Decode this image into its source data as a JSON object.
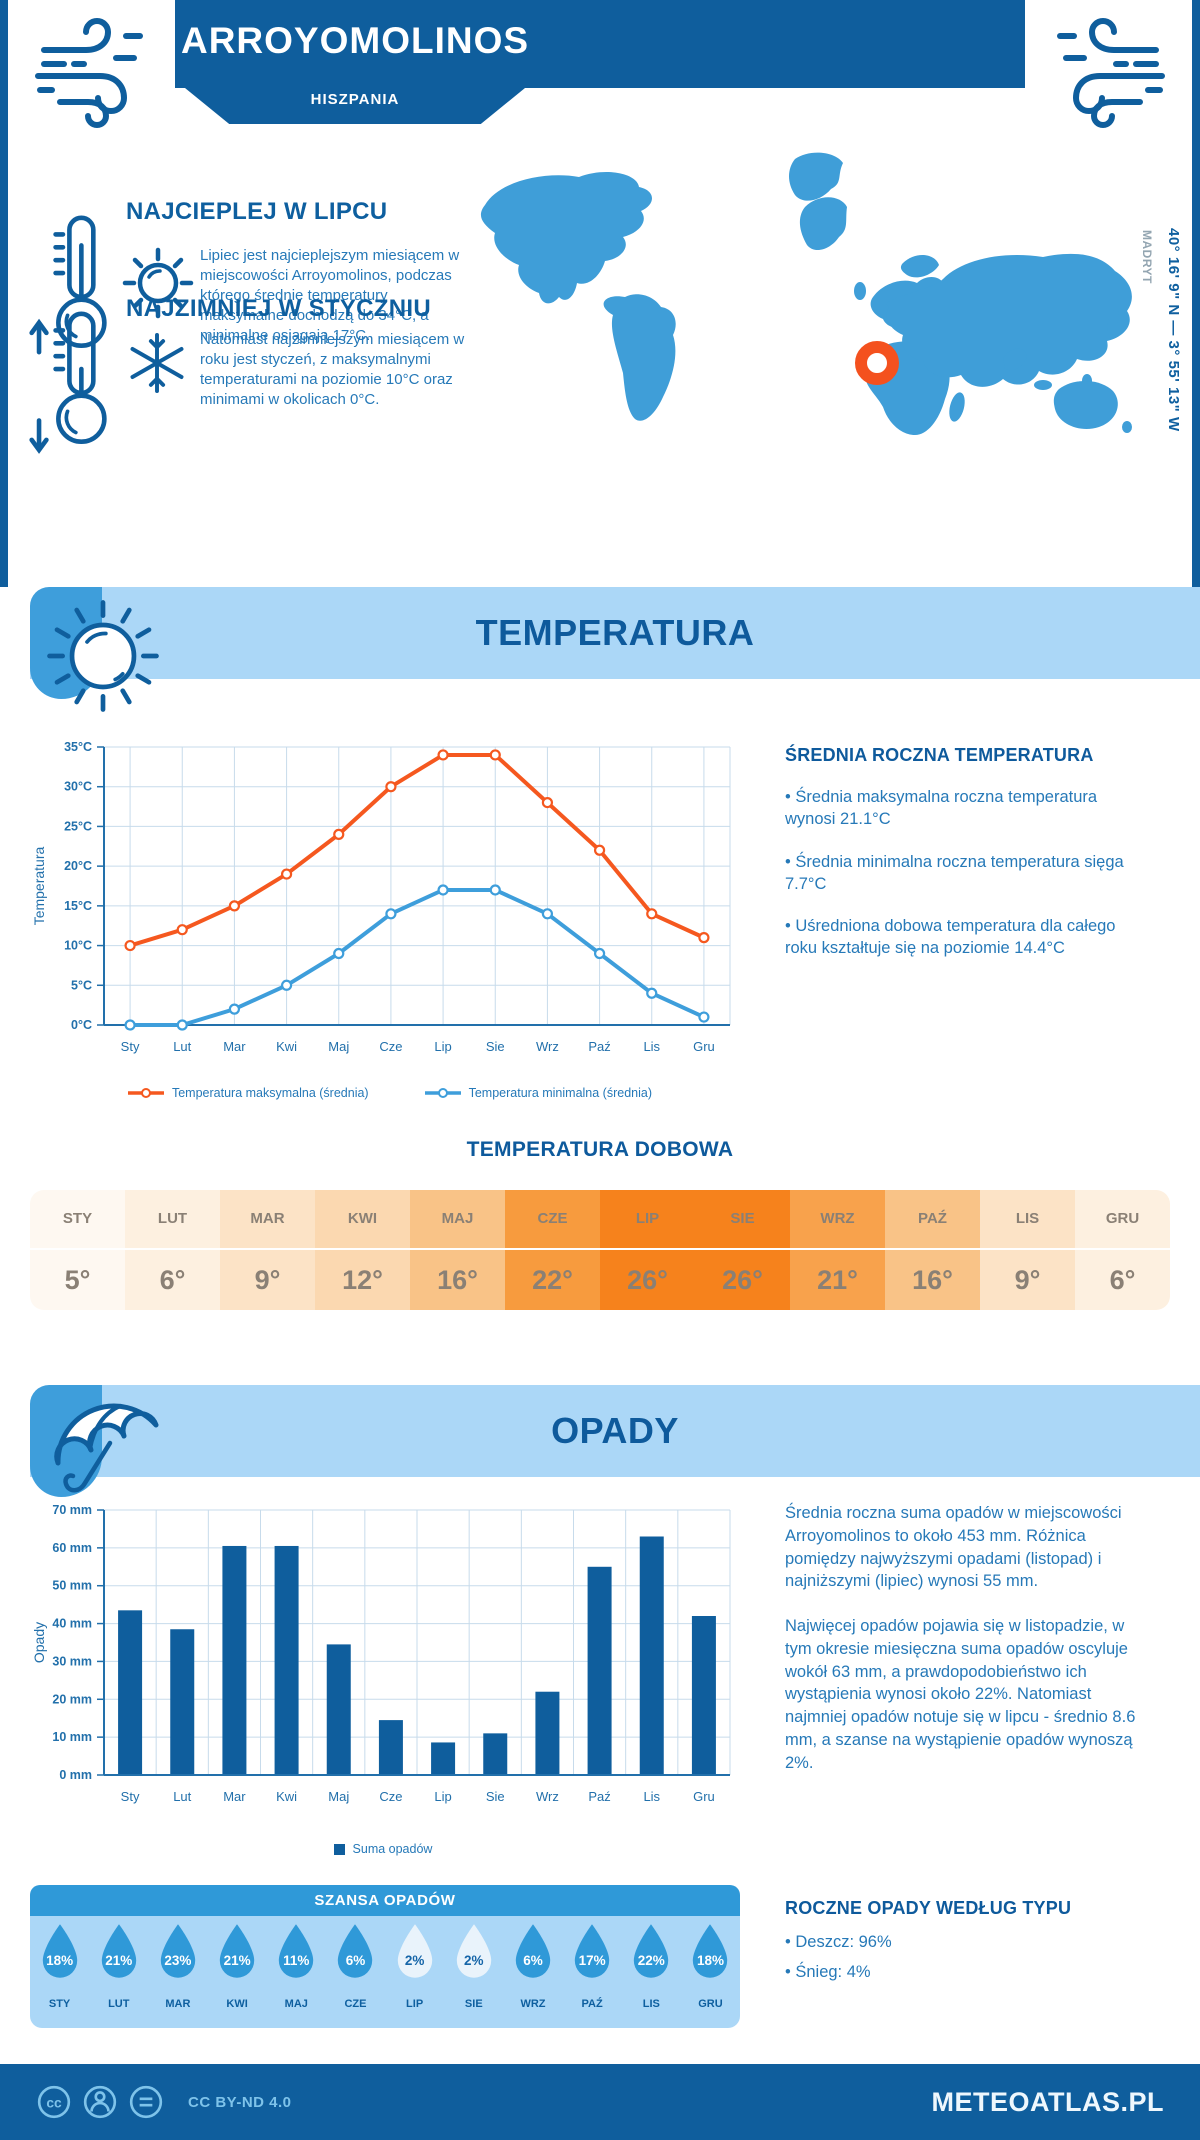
{
  "header": {
    "title": "ARROYOMOLINOS",
    "subtitle": "HISZPANIA",
    "coordinates": "40° 16' 9\" N — 3° 55' 13\" W",
    "coordinates_city": "MADRYT"
  },
  "intro": {
    "warm": {
      "heading": "NAJCIEPLEJ W LIPCU",
      "text": "Lipiec jest najcieplejszym miesiącem w miejscowości Arroyomolinos, podczas którego średnie temperatury maksymalne dochodzą do 34°C, a minimalne osiągają 17°C."
    },
    "cold": {
      "heading": "NAJZIMNIEJ W STYCZNIU",
      "text": "Natomiast najzimniejszym miesiącem w roku jest styczeń, z maksymalnymi temperaturami na poziomie 10°C oraz minimami w okolicach 0°C."
    }
  },
  "sections": {
    "temperature_title": "TEMPERATURA",
    "precipitation_title": "OPADY"
  },
  "chart_data": [
    {
      "type": "line",
      "title": "TEMPERATURA",
      "x": [
        "Sty",
        "Lut",
        "Mar",
        "Kwi",
        "Maj",
        "Cze",
        "Lip",
        "Sie",
        "Wrz",
        "Paź",
        "Lis",
        "Gru"
      ],
      "ylabel": "Temperatura",
      "ylim": [
        0,
        35
      ],
      "ystep": 5,
      "ytick_suffix": "°C",
      "grid": true,
      "legend_position": "bottom",
      "series": [
        {
          "name": "Temperatura maksymalna (średnia)",
          "color": "#f5581f",
          "values": [
            10,
            12,
            15,
            19,
            24,
            30,
            34,
            34,
            28,
            22,
            14,
            11
          ]
        },
        {
          "name": "Temperatura minimalna (średnia)",
          "color": "#3e9edb",
          "values": [
            0,
            0,
            2,
            5,
            9,
            14,
            17,
            17,
            14,
            9,
            4,
            1
          ]
        }
      ]
    },
    {
      "type": "bar",
      "title": "OPADY",
      "x": [
        "Sty",
        "Lut",
        "Mar",
        "Kwi",
        "Maj",
        "Cze",
        "Lip",
        "Sie",
        "Wrz",
        "Paź",
        "Lis",
        "Gru"
      ],
      "ylabel": "Opady",
      "ylim": [
        0,
        70
      ],
      "ystep": 10,
      "ytick_suffix": " mm",
      "grid": true,
      "legend": "Suma opadów",
      "color": "#0f5e9d",
      "values": [
        43.5,
        38.5,
        60.5,
        60.5,
        34.5,
        14.5,
        8.6,
        11,
        22,
        55,
        63,
        42
      ]
    }
  ],
  "annual_temp": {
    "heading": "ŚREDNIA ROCZNA TEMPERATURA",
    "bullets": [
      "• Średnia maksymalna roczna temperatura wynosi 21.1°C",
      "• Średnia minimalna roczna temperatura sięga 7.7°C",
      "• Uśredniona dobowa temperatura dla całego roku kształtuje się na poziomie 14.4°C"
    ]
  },
  "daily_temp": {
    "heading": "TEMPERATURA DOBOWA",
    "months": [
      "STY",
      "LUT",
      "MAR",
      "KWI",
      "MAJ",
      "CZE",
      "LIP",
      "SIE",
      "WRZ",
      "PAŹ",
      "LIS",
      "GRU"
    ],
    "values": [
      "5°",
      "6°",
      "9°",
      "12°",
      "16°",
      "22°",
      "26°",
      "26°",
      "21°",
      "16°",
      "9°",
      "6°"
    ],
    "cell_colors": [
      "#fef8f1",
      "#fdf0e0",
      "#fce3c6",
      "#fbd8b0",
      "#f9c387",
      "#f79b3e",
      "#f6821c",
      "#f6821c",
      "#f8a24c",
      "#f9c387",
      "#fce3c6",
      "#fdf0e0"
    ]
  },
  "precip_text": {
    "para1": "Średnia roczna suma opadów w miejscowości Arroyomolinos to około 453 mm. Różnica pomiędzy najwyższymi opadami (listopad) i najniższymi (lipiec) wynosi 55 mm.",
    "para2": "Najwięcej opadów pojawia się w listopadzie, w tym okresie miesięczna suma opadów oscyluje wokół 63 mm, a prawdopodobieństwo ich wystąpienia wynosi około 22%. Natomiast najmniej opadów notuje się w lipcu - średnio 8.6 mm, a szanse na wystąpienie opadów wynoszą 2%."
  },
  "precip_type": {
    "heading": "ROCZNE OPADY WEDŁUG TYPU",
    "bullets": [
      "• Deszcz: 96%",
      "• Śnieg: 4%"
    ]
  },
  "rain_chance": {
    "heading": "SZANSA OPADÓW",
    "months": [
      "STY",
      "LUT",
      "MAR",
      "KWI",
      "MAJ",
      "CZE",
      "LIP",
      "SIE",
      "WRZ",
      "PAŹ",
      "LIS",
      "GRU"
    ],
    "values": [
      "18%",
      "21%",
      "23%",
      "21%",
      "11%",
      "6%",
      "2%",
      "2%",
      "6%",
      "17%",
      "22%",
      "18%"
    ],
    "light": [
      false,
      false,
      false,
      false,
      false,
      false,
      true,
      true,
      false,
      false,
      false,
      false
    ]
  },
  "footer": {
    "license": "CC BY-ND 4.0",
    "site": "METEOATLAS.PL"
  },
  "colors": {
    "primary": "#0f5e9d",
    "heading": "#0e5a9c",
    "body_text": "#2679b8",
    "band_light": "#abd7f7",
    "band_medium": "#3e9edb",
    "map_fill": "#3f9ed8",
    "marker": "#f4511e",
    "grid": "#c7dbeb",
    "axis": "#2270ab",
    "table_text": "#8a8075",
    "droplet": "#2f99d8",
    "droplet_light": "#e9f3fb",
    "footer_accent": "#7ec3ea"
  }
}
